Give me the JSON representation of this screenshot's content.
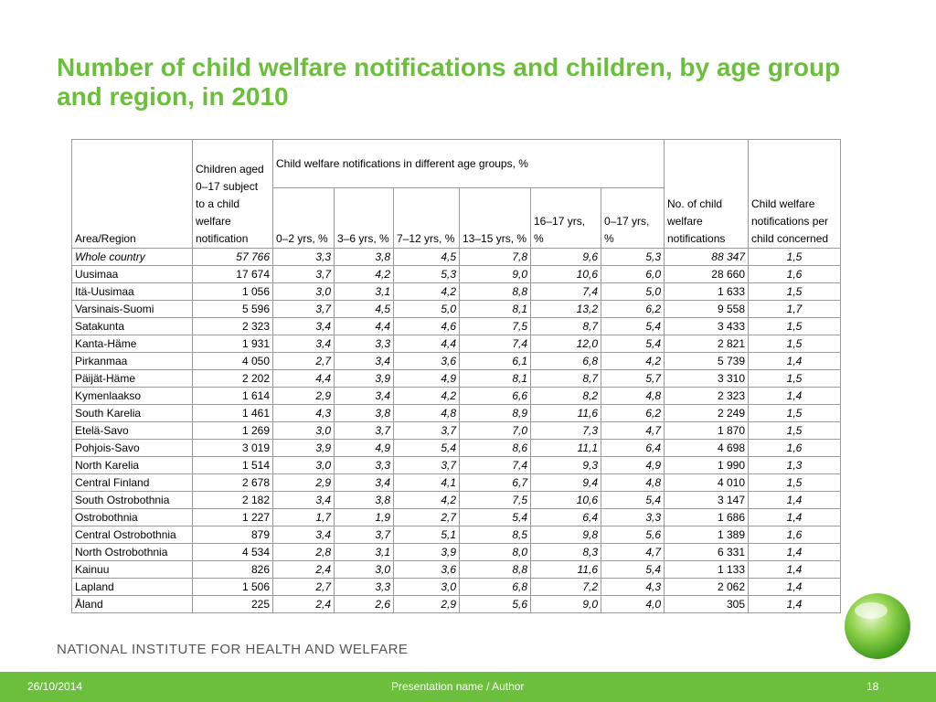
{
  "title": "Number of child welfare notifications and children, by age group and region, in 2010",
  "table": {
    "header": {
      "area": "Area/Region",
      "children": "Children aged 0–17 subject to a child welfare notification",
      "group": "Child welfare notifications in different age groups, %",
      "ages": [
        "0–2 yrs, %",
        "3–6 yrs, %",
        "7–12 yrs, %",
        "13–15 yrs, %",
        "16–17 yrs, %",
        "0–17 yrs, %"
      ],
      "count": "No. of child welfare notifications",
      "per_child": "Child welfare notifications per child concerned"
    },
    "rows": [
      [
        "Whole country",
        "57 766",
        "3,3",
        "3,8",
        "4,5",
        "7,8",
        "9,6",
        "5,3",
        "88 347",
        "1,5"
      ],
      [
        "Uusimaa",
        "17 674",
        "3,7",
        "4,2",
        "5,3",
        "9,0",
        "10,6",
        "6,0",
        "28 660",
        "1,6"
      ],
      [
        "Itä-Uusimaa",
        "1 056",
        "3,0",
        "3,1",
        "4,2",
        "8,8",
        "7,4",
        "5,0",
        "1 633",
        "1,5"
      ],
      [
        "Varsinais-Suomi",
        "5 596",
        "3,7",
        "4,5",
        "5,0",
        "8,1",
        "13,2",
        "6,2",
        "9 558",
        "1,7"
      ],
      [
        "Satakunta",
        "2 323",
        "3,4",
        "4,4",
        "4,6",
        "7,5",
        "8,7",
        "5,4",
        "3 433",
        "1,5"
      ],
      [
        "Kanta-Häme",
        "1 931",
        "3,4",
        "3,3",
        "4,4",
        "7,4",
        "12,0",
        "5,4",
        "2 821",
        "1,5"
      ],
      [
        "Pirkanmaa",
        "4 050",
        "2,7",
        "3,4",
        "3,6",
        "6,1",
        "6,8",
        "4,2",
        "5 739",
        "1,4"
      ],
      [
        "Päijät-Häme",
        "2 202",
        "4,4",
        "3,9",
        "4,9",
        "8,1",
        "8,7",
        "5,7",
        "3 310",
        "1,5"
      ],
      [
        "Kymenlaakso",
        "1 614",
        "2,9",
        "3,4",
        "4,2",
        "6,6",
        "8,2",
        "4,8",
        "2 323",
        "1,4"
      ],
      [
        "South Karelia",
        "1 461",
        "4,3",
        "3,8",
        "4,8",
        "8,9",
        "11,6",
        "6,2",
        "2 249",
        "1,5"
      ],
      [
        "Etelä-Savo",
        "1 269",
        "3,0",
        "3,7",
        "3,7",
        "7,0",
        "7,3",
        "4,7",
        "1 870",
        "1,5"
      ],
      [
        "Pohjois-Savo",
        "3 019",
        "3,9",
        "4,9",
        "5,4",
        "8,6",
        "11,1",
        "6,4",
        "4 698",
        "1,6"
      ],
      [
        "North Karelia",
        "1 514",
        "3,0",
        "3,3",
        "3,7",
        "7,4",
        "9,3",
        "4,9",
        "1 990",
        "1,3"
      ],
      [
        "Central Finland",
        "2 678",
        "2,9",
        "3,4",
        "4,1",
        "6,7",
        "9,4",
        "4,8",
        "4 010",
        "1,5"
      ],
      [
        "South Ostrobothnia",
        "2 182",
        "3,4",
        "3,8",
        "4,2",
        "7,5",
        "10,6",
        "5,4",
        "3 147",
        "1,4"
      ],
      [
        "Ostrobothnia",
        "1 227",
        "1,7",
        "1,9",
        "2,7",
        "5,4",
        "6,4",
        "3,3",
        "1 686",
        "1,4"
      ],
      [
        "Central Ostrobothnia",
        "879",
        "3,4",
        "3,7",
        "5,1",
        "8,5",
        "9,8",
        "5,6",
        "1 389",
        "1,6"
      ],
      [
        "North Ostrobothnia",
        "4 534",
        "2,8",
        "3,1",
        "3,9",
        "8,0",
        "8,3",
        "4,7",
        "6 331",
        "1,4"
      ],
      [
        "Kainuu",
        "826",
        "2,4",
        "3,0",
        "3,6",
        "8,8",
        "11,6",
        "5,4",
        "1 133",
        "1,4"
      ],
      [
        "Lapland",
        "1 506",
        "2,7",
        "3,3",
        "3,0",
        "6,8",
        "7,2",
        "4,3",
        "2 062",
        "1,4"
      ],
      [
        "Åland",
        "225",
        "2,4",
        "2,6",
        "2,9",
        "5,6",
        "9,0",
        "4,0",
        "305",
        "1,4"
      ]
    ]
  },
  "footer": {
    "institute": "NATIONAL INSTITUTE FOR HEALTH AND WELFARE",
    "date": "26/10/2014",
    "presentation": "Presentation name / Author",
    "page": "18"
  }
}
